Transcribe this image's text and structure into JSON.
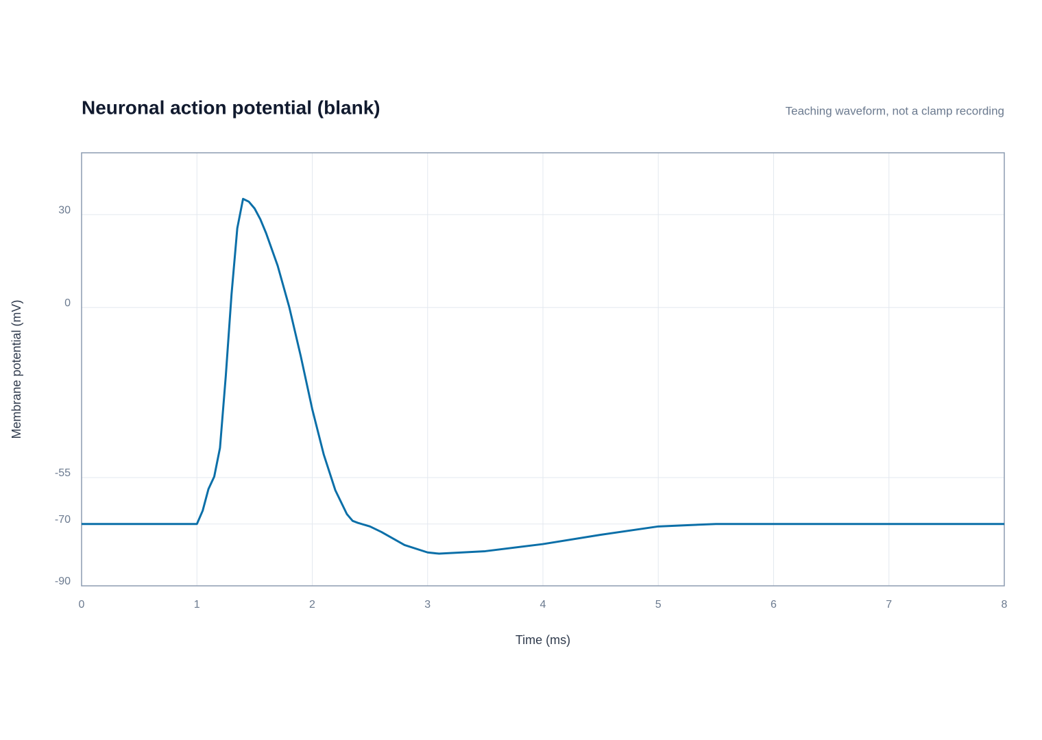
{
  "chart_data": {
    "type": "line",
    "title": "Neuronal action potential (blank)",
    "subtitle": "Teaching waveform, not a clamp recording",
    "x_label": "Time (ms)",
    "y_label": "Membrane potential (mV)",
    "x": [
      0,
      1,
      1.05,
      1.1,
      1.15,
      1.2,
      1.25,
      1.3,
      1.35,
      1.4,
      1.45,
      1.5,
      1.55,
      1.6,
      1.7,
      1.8,
      1.9,
      2,
      2.1,
      2.2,
      2.3,
      2.35,
      2.4,
      2.5,
      2.6,
      2.8,
      3,
      3.1,
      3.5,
      4,
      4.5,
      5,
      5.5,
      6,
      7,
      8
    ],
    "series": [
      {
        "name": "Membrane potential",
        "color": "#0b6fa8",
        "values": [
          -70,
          -70,
          -65.7,
          -58.7,
          -54.7,
          -45.4,
          -22.3,
          4.2,
          25.6,
          35.1,
          34.2,
          32,
          28.5,
          24,
          13.5,
          0.2,
          -15.7,
          -32.9,
          -47.6,
          -59.1,
          -66.8,
          -69,
          -69.7,
          -70.8,
          -72.6,
          -76.8,
          -79.2,
          -79.6,
          -78.8,
          -76.5,
          -73.5,
          -70.8,
          -70,
          -70,
          -70,
          -70
        ]
      }
    ],
    "xlim": [
      0,
      8
    ],
    "xticks": [
      0,
      1,
      2,
      3,
      4,
      5,
      6,
      7,
      8
    ],
    "ylim": [
      -90,
      50
    ],
    "yticks": [
      -90,
      -70,
      -55,
      0,
      30
    ],
    "grid": true
  }
}
